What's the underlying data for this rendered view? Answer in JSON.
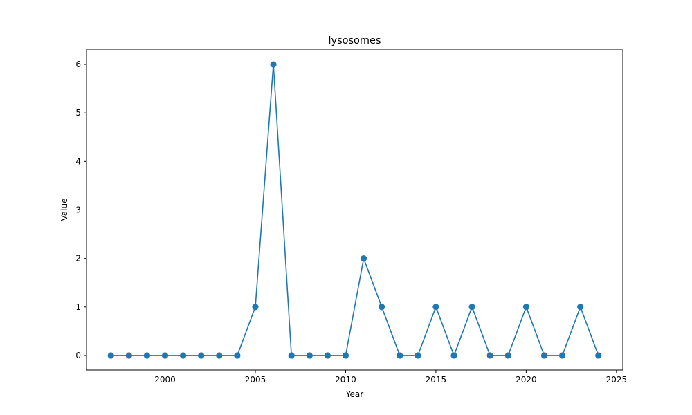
{
  "chart_data": {
    "type": "line",
    "title": "lysosomes",
    "xlabel": "Year",
    "ylabel": "Value",
    "x": [
      1997,
      1998,
      1999,
      2000,
      2001,
      2002,
      2003,
      2004,
      2005,
      2006,
      2007,
      2008,
      2009,
      2010,
      2011,
      2012,
      2013,
      2014,
      2015,
      2016,
      2017,
      2018,
      2019,
      2020,
      2021,
      2022,
      2023,
      2024
    ],
    "series": [
      {
        "values": [
          0,
          0,
          0,
          0,
          0,
          0,
          0,
          0,
          1,
          6,
          0,
          0,
          0,
          0,
          2,
          1,
          0,
          0,
          1,
          0,
          1,
          0,
          0,
          1,
          0,
          0,
          1,
          0
        ],
        "color": "#1f77b4",
        "marker": "circle"
      }
    ],
    "xticks": [
      2000,
      2005,
      2010,
      2015,
      2020,
      2025
    ],
    "yticks": [
      0,
      1,
      2,
      3,
      4,
      5,
      6
    ],
    "xlim": [
      1995.65,
      2025.35
    ],
    "ylim": [
      -0.3,
      6.3
    ],
    "grid": false,
    "legend": "none"
  }
}
